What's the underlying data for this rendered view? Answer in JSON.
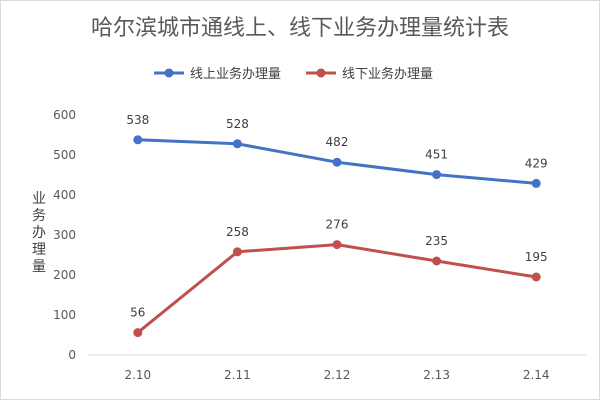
{
  "chart_data": {
    "type": "line",
    "title": "哈尔滨城市通线上、线下业务办理量统计表",
    "xlabel": "",
    "ylabel": "业务办理量",
    "categories": [
      "2.10",
      "2.11",
      "2.12",
      "2.13",
      "2.14"
    ],
    "ylim": [
      0,
      600
    ],
    "yticks": [
      "0",
      "100",
      "200",
      "300",
      "400",
      "500",
      "600"
    ],
    "grid": false,
    "legend_position": "top-center",
    "series": [
      {
        "name": "线上业务办理量",
        "color": "#4472c4",
        "values": [
          538,
          528,
          482,
          451,
          429
        ]
      },
      {
        "name": "线下业务办理量",
        "color": "#c0504d",
        "values": [
          56,
          258,
          276,
          235,
          195
        ]
      }
    ]
  }
}
